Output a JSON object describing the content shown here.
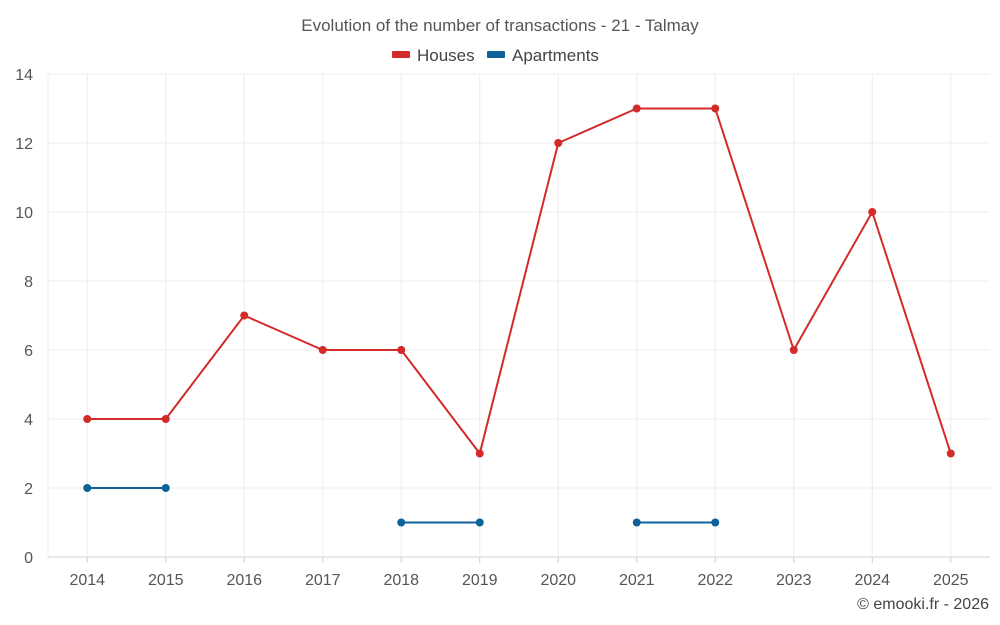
{
  "chart_data": {
    "type": "line",
    "title": "Evolution of the number of transactions - 21 - Talmay",
    "categories": [
      "2014",
      "2015",
      "2016",
      "2017",
      "2018",
      "2019",
      "2020",
      "2021",
      "2022",
      "2023",
      "2024",
      "2025"
    ],
    "y_ticks": [
      "0",
      "2",
      "4",
      "6",
      "8",
      "10",
      "12",
      "14"
    ],
    "ylim": [
      0,
      14
    ],
    "grid": true,
    "legend_position": "top-center",
    "series": [
      {
        "name": "Houses",
        "color": "#d32a2a",
        "values": [
          4,
          4,
          7,
          6,
          6,
          3,
          12,
          13,
          13,
          6,
          10,
          3
        ]
      },
      {
        "name": "Apartments",
        "color": "#0d6399",
        "values": [
          2,
          2,
          null,
          null,
          1,
          1,
          null,
          1,
          1,
          null,
          null,
          null
        ]
      }
    ],
    "credit": "© emooki.fr - 2026"
  }
}
